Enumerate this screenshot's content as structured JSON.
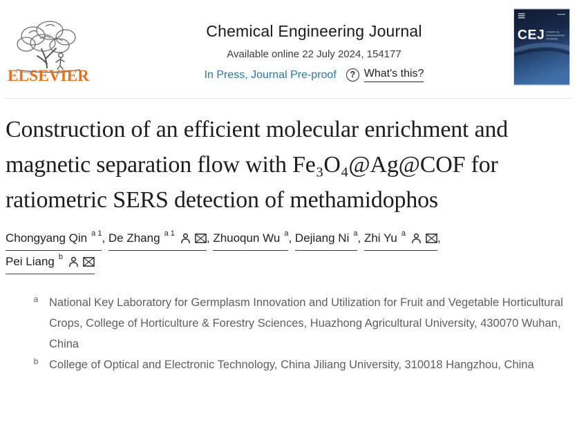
{
  "colors": {
    "elsevier-orange": "#E9711C",
    "link-teal": "#2878A8",
    "title-ink": "#1D1D1D",
    "body-gray": "#5E5E5E"
  },
  "header": {
    "publisher_wordmark": "ELSEVIER",
    "journal_title": "Chemical Engineering Journal",
    "availability": "Available online 22 July 2024, 154177",
    "in_press_label": "In Press, Journal Pre-proof",
    "help_glyph": "?",
    "whats_this_label": "What's this?",
    "cover": {
      "abbrev": "CEJ",
      "name_line1": "CHEMICAL",
      "name_line2": "ENGINEERING",
      "name_line3": "JOURNAL"
    }
  },
  "article": {
    "title": "Construction of an efficient molecular enrichment and magnetic separation flow with Fe₃O₄@Ag@COF for ratiometric SERS detection of methamidophos",
    "authors": [
      {
        "name": "Chongyang Qin",
        "sup": "a 1",
        "person_icon": false,
        "mail_icon": false
      },
      {
        "name": "De Zhang",
        "sup": "a 1",
        "person_icon": true,
        "mail_icon": true
      },
      {
        "name": "Zhuoqun Wu",
        "sup": "a",
        "person_icon": false,
        "mail_icon": false
      },
      {
        "name": "Dejiang Ni",
        "sup": "a",
        "person_icon": false,
        "mail_icon": false
      },
      {
        "name": "Zhi Yu",
        "sup": "a",
        "person_icon": true,
        "mail_icon": true
      },
      {
        "name": "Pei Liang",
        "sup": "b",
        "person_icon": true,
        "mail_icon": true
      }
    ],
    "author_separator": ", ",
    "affiliations": [
      {
        "label": "a",
        "text": "National Key Laboratory for Germplasm Innovation and Utilization for Fruit and Vegetable Horticultural Crops, College of Horticulture & Forestry Sciences, Huazhong Agricultural University, 430070 Wuhan, China"
      },
      {
        "label": "b",
        "text": "College of Optical and Electronic Technology, China Jiliang University, 310018 Hangzhou, China"
      }
    ]
  },
  "icons": {
    "person": "person-icon",
    "mail": "envelope-icon",
    "help": "question-mark-circle-icon",
    "logo": "elsevier-tree-logo"
  }
}
